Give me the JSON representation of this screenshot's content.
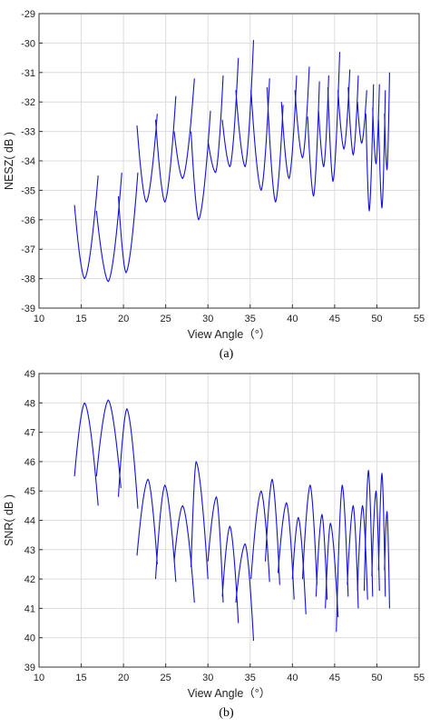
{
  "chart_data": [
    {
      "type": "line",
      "caption": "(a)",
      "xlabel": "View Angle（°）",
      "ylabel": "NESZ( dB )",
      "xlim": [
        10,
        55
      ],
      "ylim": [
        -39,
        -29
      ],
      "xticks": [
        "10",
        "15",
        "20",
        "25",
        "30",
        "35",
        "40",
        "45",
        "50",
        "55"
      ],
      "yticks": [
        "-29",
        "-30",
        "-31",
        "-32",
        "-33",
        "-34",
        "-35",
        "-36",
        "-37",
        "-38",
        "-39"
      ],
      "grid": true,
      "color": "#1212d8",
      "segments": [
        [
          [
            14.2,
            -35.5
          ],
          [
            15.4,
            -38.0
          ],
          [
            17.0,
            -34.5
          ]
        ],
        [
          [
            16.8,
            -35.7
          ],
          [
            18.2,
            -38.1
          ],
          [
            19.8,
            -34.4
          ]
        ],
        [
          [
            19.4,
            -35.2
          ],
          [
            20.3,
            -37.8
          ],
          [
            21.7,
            -34.4
          ]
        ],
        [
          [
            21.6,
            -32.8
          ],
          [
            22.7,
            -35.4
          ],
          [
            24.0,
            -32.4
          ]
        ],
        [
          [
            23.8,
            -32.6
          ],
          [
            24.9,
            -35.4
          ],
          [
            26.2,
            -31.8
          ]
        ],
        [
          [
            26.0,
            -33.0
          ],
          [
            27.0,
            -34.6
          ],
          [
            28.4,
            -31.2
          ]
        ],
        [
          [
            28.0,
            -33.0
          ],
          [
            28.9,
            -36.0
          ],
          [
            30.3,
            -32.3
          ]
        ],
        [
          [
            30.0,
            -33.3
          ],
          [
            30.9,
            -34.4
          ],
          [
            31.8,
            -31.1
          ]
        ],
        [
          [
            31.7,
            -32.6
          ],
          [
            32.6,
            -34.2
          ],
          [
            33.6,
            -30.5
          ]
        ],
        [
          [
            33.3,
            -31.6
          ],
          [
            34.4,
            -34.2
          ],
          [
            35.4,
            -29.9
          ]
        ],
        [
          [
            35.1,
            -31.6
          ],
          [
            36.3,
            -35.0
          ],
          [
            37.3,
            -31.2
          ]
        ],
        [
          [
            37.0,
            -31.5
          ],
          [
            38.0,
            -35.4
          ],
          [
            38.9,
            -32.1
          ]
        ],
        [
          [
            38.7,
            -32.0
          ],
          [
            39.6,
            -34.6
          ],
          [
            40.5,
            -31.1
          ]
        ],
        [
          [
            40.3,
            -31.6
          ],
          [
            41.2,
            -33.9
          ],
          [
            42.0,
            -30.8
          ]
        ],
        [
          [
            41.8,
            -32.5
          ],
          [
            42.5,
            -35.2
          ],
          [
            43.2,
            -31.3
          ]
        ],
        [
          [
            43.1,
            -32.3
          ],
          [
            43.7,
            -34.2
          ],
          [
            44.3,
            -31.1
          ]
        ],
        [
          [
            44.2,
            -31.5
          ],
          [
            44.8,
            -34.7
          ],
          [
            45.6,
            -30.3
          ]
        ],
        [
          [
            45.4,
            -31.6
          ],
          [
            46.1,
            -33.6
          ],
          [
            46.8,
            -30.9
          ]
        ],
        [
          [
            46.6,
            -31.5
          ],
          [
            47.2,
            -33.8
          ],
          [
            47.8,
            -31.1
          ]
        ],
        [
          [
            47.7,
            -32.0
          ],
          [
            48.2,
            -33.4
          ],
          [
            48.8,
            -31.6
          ]
        ],
        [
          [
            48.7,
            -32.4
          ],
          [
            49.1,
            -35.7
          ],
          [
            49.6,
            -31.4
          ]
        ],
        [
          [
            49.5,
            -32.2
          ],
          [
            49.9,
            -34.1
          ],
          [
            50.3,
            -31.4
          ]
        ],
        [
          [
            50.2,
            -32.6
          ],
          [
            50.6,
            -35.6
          ],
          [
            51.0,
            -31.6
          ]
        ],
        [
          [
            50.9,
            -32.4
          ],
          [
            51.2,
            -34.3
          ],
          [
            51.5,
            -31.0
          ]
        ]
      ]
    },
    {
      "type": "line",
      "caption": "(b)",
      "xlabel": "View Angle（°）",
      "ylabel": "SNR( dB )",
      "xlim": [
        10,
        55
      ],
      "ylim": [
        39,
        49
      ],
      "xticks": [
        "10",
        "15",
        "20",
        "25",
        "30",
        "35",
        "40",
        "45",
        "50",
        "55"
      ],
      "yticks": [
        "49",
        "48",
        "47",
        "46",
        "45",
        "44",
        "43",
        "42",
        "41",
        "40",
        "39"
      ],
      "grid": true,
      "color": "#1212d8",
      "segments": [
        [
          [
            14.2,
            45.5
          ],
          [
            15.4,
            48.0
          ],
          [
            17.0,
            44.5
          ]
        ],
        [
          [
            16.8,
            45.5
          ],
          [
            18.2,
            48.1
          ],
          [
            19.7,
            45.1
          ]
        ],
        [
          [
            19.4,
            44.8
          ],
          [
            20.4,
            47.8
          ],
          [
            21.7,
            44.4
          ]
        ],
        [
          [
            21.6,
            42.8
          ],
          [
            22.9,
            45.4
          ],
          [
            24.0,
            42.5
          ]
        ],
        [
          [
            23.8,
            42.0
          ],
          [
            24.9,
            45.2
          ],
          [
            26.2,
            41.9
          ]
        ],
        [
          [
            26.0,
            42.6
          ],
          [
            27.0,
            44.5
          ],
          [
            28.4,
            41.2
          ]
        ],
        [
          [
            28.0,
            42.4
          ],
          [
            28.6,
            46.0
          ],
          [
            30.0,
            42.0
          ]
        ],
        [
          [
            30.0,
            42.6
          ],
          [
            31.0,
            44.8
          ],
          [
            31.8,
            41.2
          ]
        ],
        [
          [
            31.7,
            41.4
          ],
          [
            32.6,
            43.8
          ],
          [
            33.6,
            40.5
          ]
        ],
        [
          [
            33.3,
            41.2
          ],
          [
            34.4,
            43.2
          ],
          [
            35.4,
            39.9
          ]
        ],
        [
          [
            35.1,
            42.0
          ],
          [
            36.3,
            45.0
          ],
          [
            37.3,
            41.9
          ]
        ],
        [
          [
            36.8,
            42.6
          ],
          [
            37.6,
            45.4
          ],
          [
            38.5,
            41.8
          ]
        ],
        [
          [
            38.3,
            42.2
          ],
          [
            39.3,
            44.6
          ],
          [
            40.2,
            41.3
          ]
        ],
        [
          [
            40.0,
            42.0
          ],
          [
            40.7,
            44.1
          ],
          [
            41.6,
            40.8
          ]
        ],
        [
          [
            41.2,
            42.0
          ],
          [
            42.1,
            45.2
          ],
          [
            42.9,
            41.8
          ]
        ],
        [
          [
            42.8,
            41.4
          ],
          [
            43.5,
            44.2
          ],
          [
            44.1,
            41.3
          ]
        ],
        [
          [
            43.9,
            41.0
          ],
          [
            44.5,
            43.9
          ],
          [
            45.4,
            40.7
          ]
        ],
        [
          [
            45.2,
            40.2
          ],
          [
            45.9,
            45.2
          ],
          [
            46.6,
            41.4
          ]
        ],
        [
          [
            46.5,
            41.8
          ],
          [
            47.2,
            44.5
          ],
          [
            47.8,
            41.0
          ]
        ],
        [
          [
            47.7,
            41.6
          ],
          [
            48.3,
            44.5
          ],
          [
            48.9,
            41.3
          ]
        ],
        [
          [
            48.5,
            41.6
          ],
          [
            49.0,
            45.7
          ],
          [
            49.5,
            41.4
          ]
        ],
        [
          [
            49.4,
            42.1
          ],
          [
            49.9,
            45.0
          ],
          [
            50.3,
            41.6
          ]
        ],
        [
          [
            50.2,
            42.3
          ],
          [
            50.6,
            45.6
          ],
          [
            51.0,
            41.4
          ]
        ],
        [
          [
            50.9,
            42.3
          ],
          [
            51.2,
            44.3
          ],
          [
            51.5,
            41.0
          ]
        ]
      ]
    }
  ]
}
